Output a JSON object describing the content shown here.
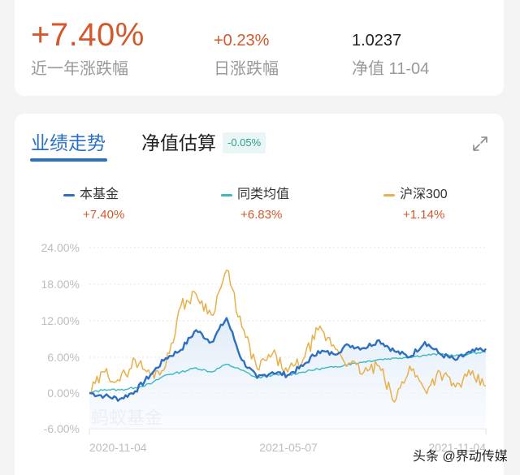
{
  "summary": {
    "year_change": {
      "value": "+7.40%",
      "label": "近一年涨跌幅"
    },
    "day_change": {
      "value": "+0.23%",
      "label": "日涨跌幅"
    },
    "nav": {
      "value": "1.0237",
      "label": "净值 11-04"
    }
  },
  "tabs": [
    {
      "label": "业绩走势",
      "active": true
    },
    {
      "label": "净值估算",
      "active": false,
      "badge": "-0.05%"
    }
  ],
  "icons": {
    "expand": "expand-arrows-icon"
  },
  "legend": [
    {
      "name": "本基金",
      "value": "+7.40%",
      "color": "#2f6fbf"
    },
    {
      "name": "同类均值",
      "value": "+6.83%",
      "color": "#3bb8c4"
    },
    {
      "name": "沪深300",
      "value": "+1.14%",
      "color": "#e8b04a"
    }
  ],
  "watermark": "蚂蚁基金",
  "credit": "头条 @界动传媒",
  "colors": {
    "up": "#d4582a",
    "accent": "#2f6fbf",
    "fund": "#2f6fbf",
    "peer": "#3bb8c4",
    "hs300": "#e8b04a",
    "badge_text": "#2a9d8f"
  },
  "chart_data": {
    "type": "line",
    "title": "",
    "xlabel": "",
    "ylabel": "",
    "x_tick_labels": [
      "2020-11-04",
      "2021-05-07",
      "2021-11-04"
    ],
    "y_tick_labels": [
      "24.00%",
      "18.00%",
      "12.00%",
      "6.00%",
      "0.00%",
      "-6.00%"
    ],
    "ylim": [
      -6,
      24
    ],
    "grid": true,
    "legend_position": "top",
    "x": [
      "2020-11-04",
      "2020-11-20",
      "2020-12-04",
      "2020-12-18",
      "2021-01-04",
      "2021-01-18",
      "2021-02-01",
      "2021-02-10",
      "2021-02-24",
      "2021-03-10",
      "2021-03-24",
      "2021-04-08",
      "2021-04-22",
      "2021-05-07",
      "2021-05-21",
      "2021-06-04",
      "2021-06-18",
      "2021-07-02",
      "2021-07-16",
      "2021-07-30",
      "2021-08-13",
      "2021-08-27",
      "2021-09-10",
      "2021-09-24",
      "2021-10-15",
      "2021-10-29",
      "2021-11-04"
    ],
    "series": [
      {
        "name": "本基金",
        "color": "#2f6fbf",
        "final": "+7.40%",
        "values": [
          0.0,
          -0.5,
          -1.0,
          0.3,
          3.0,
          5.8,
          7.2,
          10.5,
          8.5,
          12.5,
          5.5,
          2.5,
          3.5,
          3.0,
          4.5,
          7.0,
          6.5,
          8.0,
          7.5,
          8.8,
          7.0,
          6.0,
          8.5,
          6.5,
          5.5,
          6.8,
          7.4
        ]
      },
      {
        "name": "同类均值",
        "color": "#3bb8c4",
        "final": "+6.83%",
        "values": [
          0.0,
          0.6,
          0.5,
          0.9,
          1.5,
          3.0,
          3.5,
          4.2,
          3.5,
          4.8,
          3.8,
          2.5,
          3.0,
          3.0,
          3.5,
          4.0,
          4.3,
          4.8,
          5.2,
          5.6,
          5.8,
          6.0,
          6.3,
          6.5,
          6.2,
          6.6,
          6.83
        ]
      },
      {
        "name": "沪深300",
        "color": "#e8b04a",
        "final": "+1.14%",
        "values": [
          0.0,
          3.5,
          2.0,
          5.5,
          3.0,
          4.5,
          14.5,
          16.5,
          13.0,
          20.5,
          11.0,
          4.0,
          6.5,
          3.5,
          5.5,
          10.5,
          8.0,
          5.0,
          3.5,
          4.5,
          -1.5,
          4.5,
          0.5,
          3.5,
          1.0,
          3.0,
          1.14
        ]
      }
    ]
  }
}
